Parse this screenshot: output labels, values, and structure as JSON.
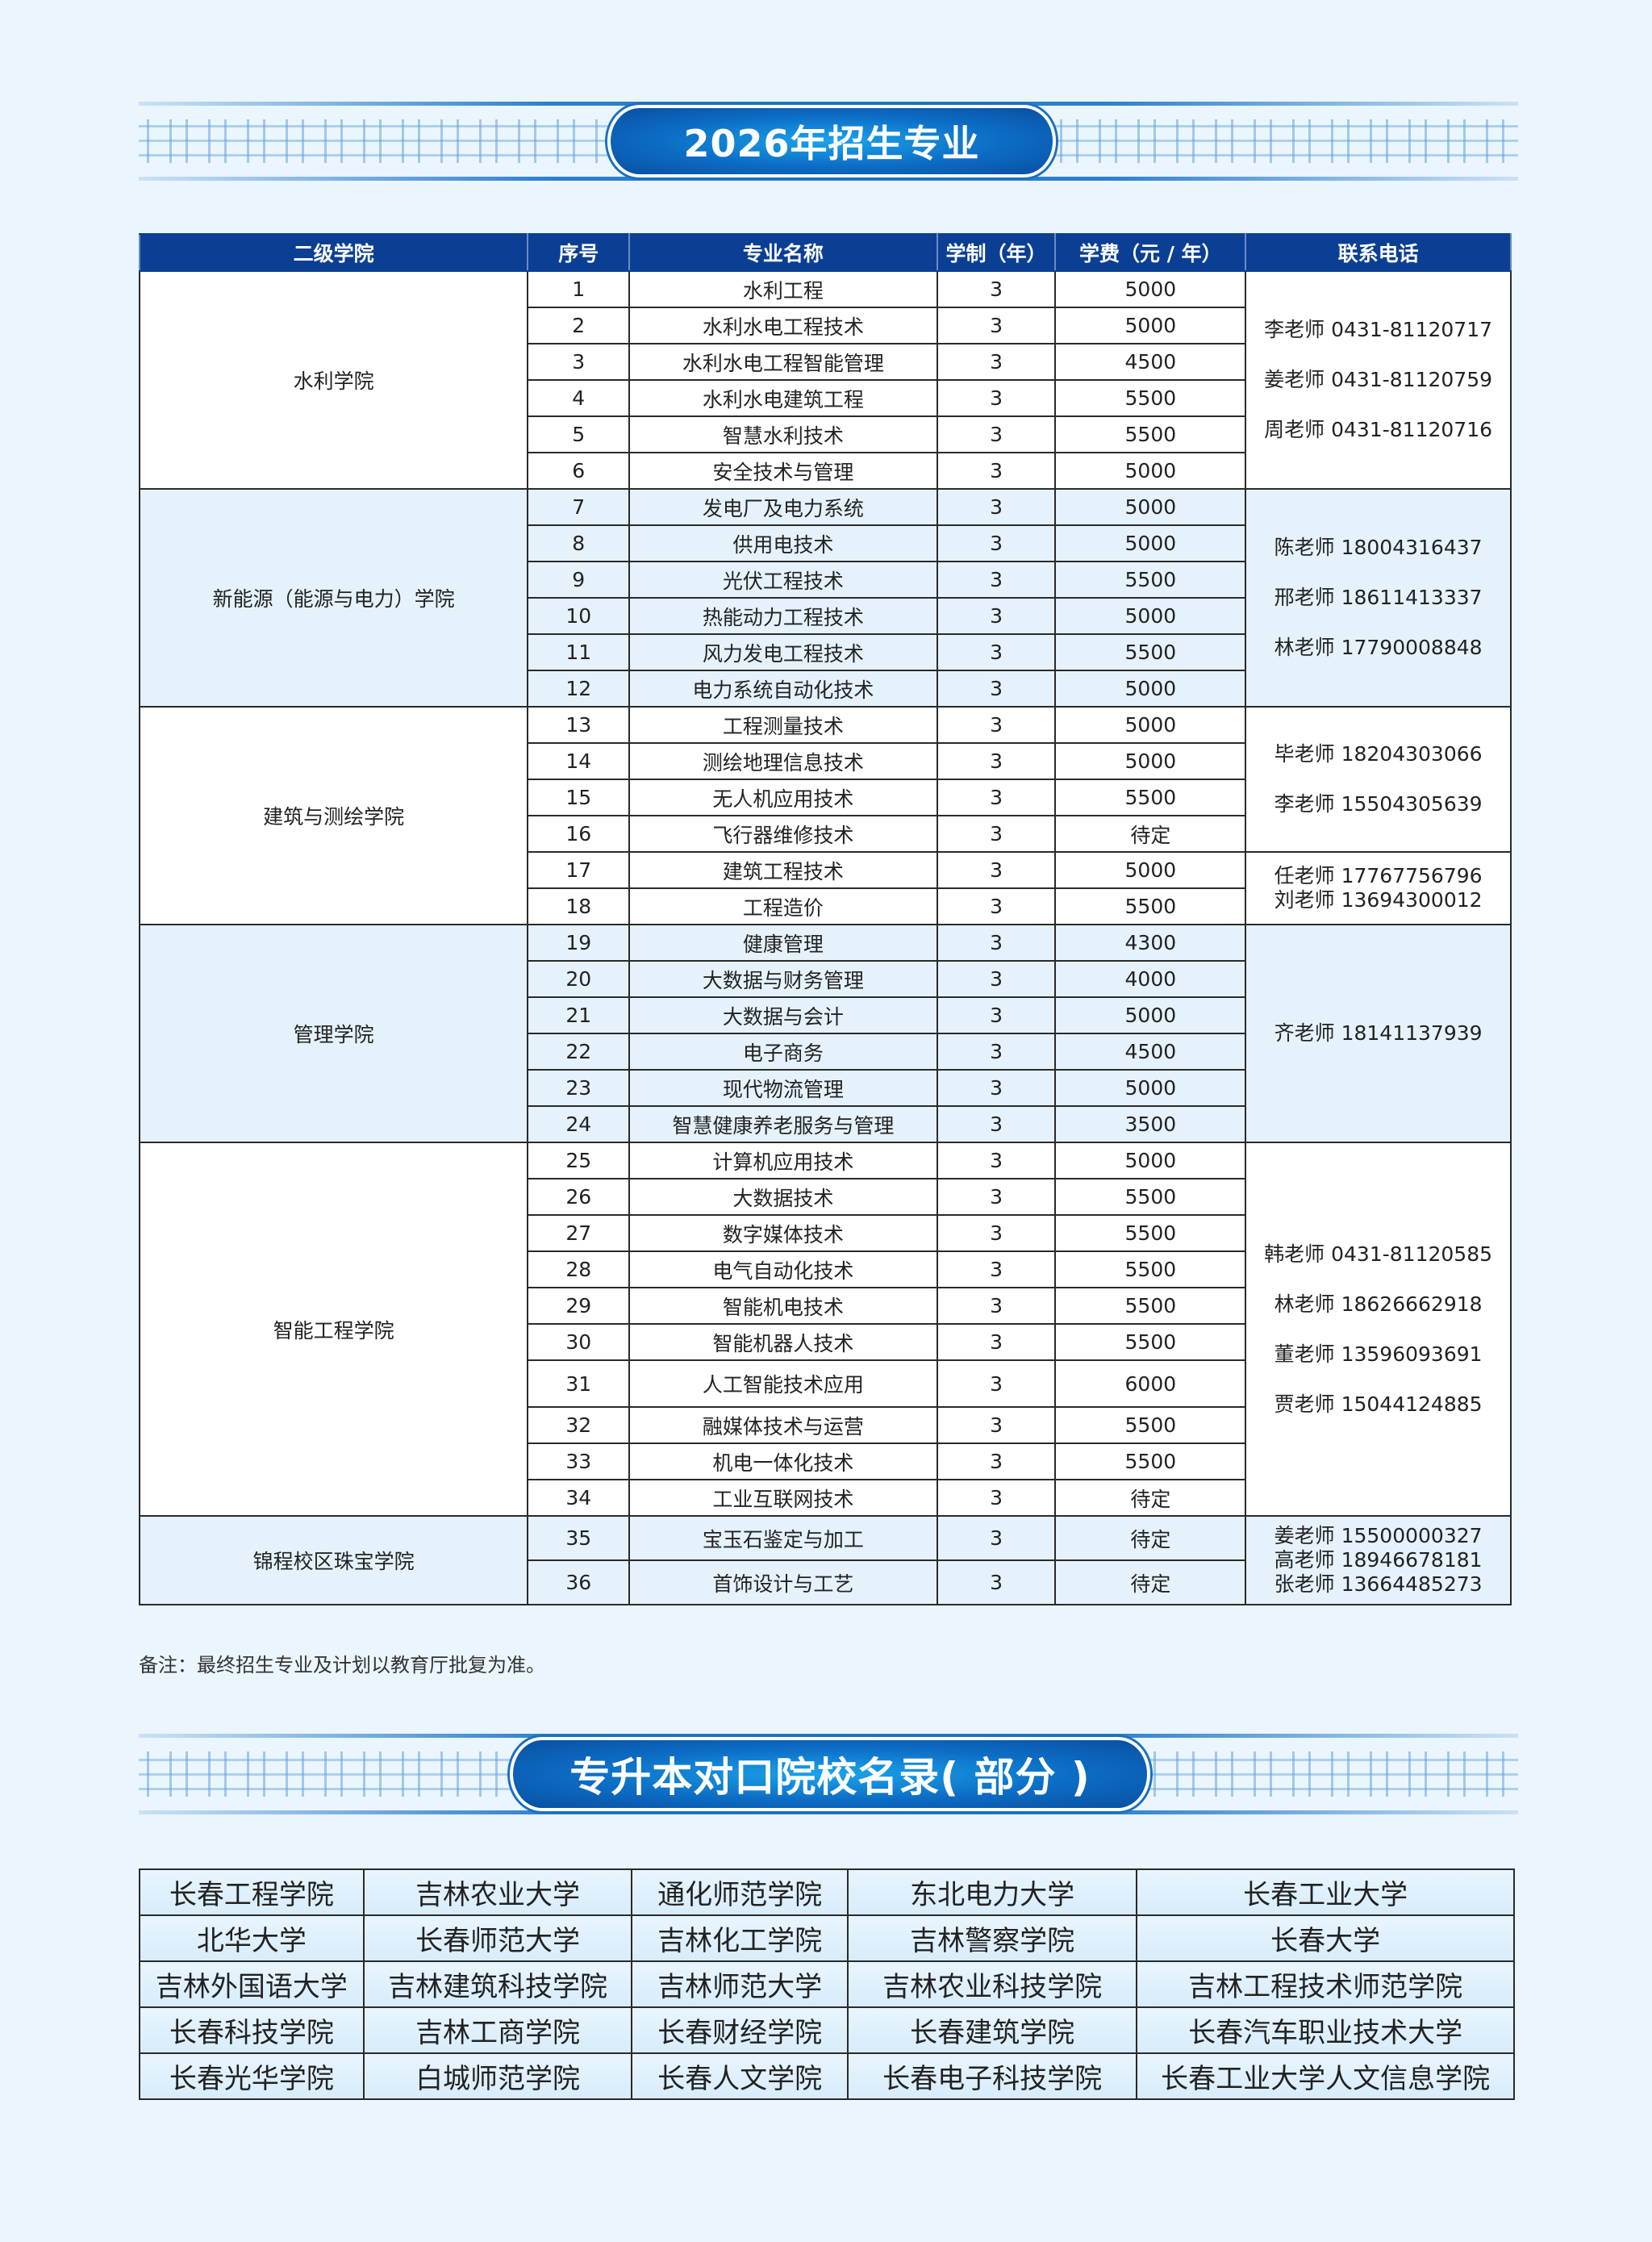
{
  "section1": {
    "title": "2026年招生专业"
  },
  "majors_table": {
    "headers": [
      "二级学院",
      "序号",
      "专业名称",
      "学制（年）",
      "学费（元 / 年）",
      "联系电话"
    ],
    "groups": [
      {
        "college": "水利学院",
        "contacts": [
          {
            "lines": [
              "李老师 0431-81120717",
              "姜老师 0431-81120759",
              "周老师 0431-81120716"
            ],
            "span": 6
          }
        ],
        "rows": [
          [
            "1",
            "水利工程",
            "3",
            "5000"
          ],
          [
            "2",
            "水利水电工程技术",
            "3",
            "5000"
          ],
          [
            "3",
            "水利水电工程智能管理",
            "3",
            "4500"
          ],
          [
            "4",
            "水利水电建筑工程",
            "3",
            "5500"
          ],
          [
            "5",
            "智慧水利技术",
            "3",
            "5500"
          ],
          [
            "6",
            "安全技术与管理",
            "3",
            "5000"
          ]
        ]
      },
      {
        "college": "新能源（能源与电力）学院",
        "contacts": [
          {
            "lines": [
              "陈老师 18004316437",
              "邢老师 18611413337",
              "林老师 17790008848"
            ],
            "span": 6
          }
        ],
        "rows": [
          [
            "7",
            "发电厂及电力系统",
            "3",
            "5000"
          ],
          [
            "8",
            "供用电技术",
            "3",
            "5000"
          ],
          [
            "9",
            "光伏工程技术",
            "3",
            "5500"
          ],
          [
            "10",
            "热能动力工程技术",
            "3",
            "5000"
          ],
          [
            "11",
            "风力发电工程技术",
            "3",
            "5500"
          ],
          [
            "12",
            "电力系统自动化技术",
            "3",
            "5000"
          ]
        ]
      },
      {
        "college": "建筑与测绘学院",
        "contacts": [
          {
            "lines": [
              "毕老师 18204303066",
              "李老师 15504305639"
            ],
            "span": 4
          },
          {
            "lines": [
              "任老师 17767756796",
              "刘老师 13694300012"
            ],
            "span": 2,
            "tight": true
          }
        ],
        "rows": [
          [
            "13",
            "工程测量技术",
            "3",
            "5000"
          ],
          [
            "14",
            "测绘地理信息技术",
            "3",
            "5000"
          ],
          [
            "15",
            "无人机应用技术",
            "3",
            "5500"
          ],
          [
            "16",
            "飞行器维修技术",
            "3",
            "待定"
          ],
          [
            "17",
            "建筑工程技术",
            "3",
            "5000"
          ],
          [
            "18",
            "工程造价",
            "3",
            "5500"
          ]
        ]
      },
      {
        "college": "管理学院",
        "contacts": [
          {
            "lines": [
              "齐老师 18141137939"
            ],
            "span": 6
          }
        ],
        "rows": [
          [
            "19",
            "健康管理",
            "3",
            "4300"
          ],
          [
            "20",
            "大数据与财务管理",
            "3",
            "4000"
          ],
          [
            "21",
            "大数据与会计",
            "3",
            "5000"
          ],
          [
            "22",
            "电子商务",
            "3",
            "4500"
          ],
          [
            "23",
            "现代物流管理",
            "3",
            "5000"
          ],
          [
            "24",
            "智慧健康养老服务与管理",
            "3",
            "3500"
          ]
        ]
      },
      {
        "college": "智能工程学院",
        "contacts": [
          {
            "lines": [
              "韩老师 0431-81120585",
              "林老师 18626662918",
              "董老师 13596093691",
              "贾老师 15044124885"
            ],
            "span": 10
          }
        ],
        "rows": [
          [
            "25",
            "计算机应用技术",
            "3",
            "5000"
          ],
          [
            "26",
            "大数据技术",
            "3",
            "5500"
          ],
          [
            "27",
            "数字媒体技术",
            "3",
            "5500"
          ],
          [
            "28",
            "电气自动化技术",
            "3",
            "5500"
          ],
          [
            "29",
            "智能机电技术",
            "3",
            "5500"
          ],
          [
            "30",
            "智能机器人技术",
            "3",
            "5500"
          ],
          [
            "31",
            "人工智能技术应用",
            "3",
            "6000"
          ],
          [
            "32",
            "融媒体技术与运营",
            "3",
            "5500"
          ],
          [
            "33",
            "机电一体化技术",
            "3",
            "5500"
          ],
          [
            "34",
            "工业互联网技术",
            "3",
            "待定"
          ]
        ]
      },
      {
        "college": "锦程校区珠宝学院",
        "contacts": [
          {
            "lines": [
              "姜老师 15500000327",
              "高老师 18946678181",
              "张老师 13664485273"
            ],
            "span": 2,
            "tight": true
          }
        ],
        "rows": [
          [
            "35",
            "宝玉石鉴定与加工",
            "3",
            "待定"
          ],
          [
            "36",
            "首饰设计与工艺",
            "3",
            "待定"
          ]
        ]
      }
    ],
    "note": "备注：最终招生专业及计划以教育厅批复为准。"
  },
  "section2": {
    "title": "专升本对口院校名录( 部分 )"
  },
  "schools": [
    [
      "长春工程学院",
      "吉林农业大学",
      "通化师范学院",
      "东北电力大学",
      "长春工业大学"
    ],
    [
      "北华大学",
      "长春师范大学",
      "吉林化工学院",
      "吉林警察学院",
      "长春大学"
    ],
    [
      "吉林外国语大学",
      "吉林建筑科技学院",
      "吉林师范大学",
      "吉林农业科技学院",
      "吉林工程技术师范学院"
    ],
    [
      "长春科技学院",
      "吉林工商学院",
      "长春财经学院",
      "长春建筑学院",
      "长春汽车职业技术大学"
    ],
    [
      "长春光华学院",
      "白城师范学院",
      "长春人文学院",
      "长春电子科技学院",
      "长春工业大学人文信息学院"
    ]
  ],
  "colors": {
    "header": "#0b3f94",
    "band": "#e5f2fc",
    "background": "#eaf5fd"
  }
}
